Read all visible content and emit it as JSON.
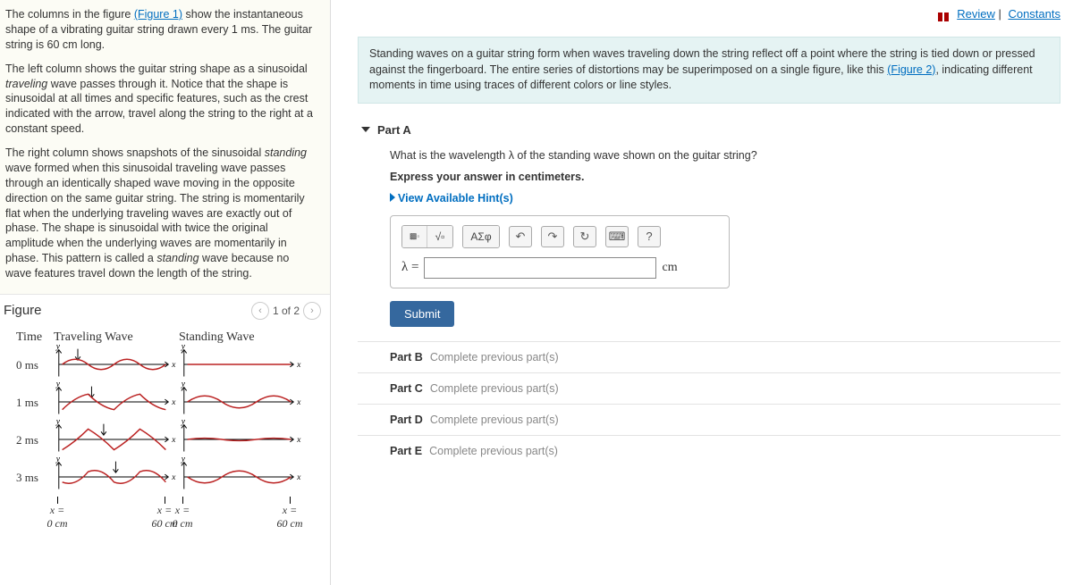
{
  "left": {
    "p1a": "The columns in the figure ",
    "p1_link": "(Figure 1)",
    "p1b": " show the instantaneous shape of a vibrating guitar string drawn every 1 ms. The guitar string is 60 cm long.",
    "p2a": "The left column shows the guitar string shape as a sinusoidal ",
    "p2_i": "traveling",
    "p2b": " wave passes through it. Notice that the shape is sinusoidal at all times and specific features, such as the crest indicated with the arrow, travel along the string to the right at a constant speed.",
    "p3a": "The right column shows snapshots of the sinusoidal ",
    "p3_i1": "standing",
    "p3b": " wave formed when this sinusoidal traveling wave passes through an identically shaped wave moving in the opposite direction on the same guitar string. The string is momentarily flat when the underlying traveling waves are exactly out of phase. The shape is sinusoidal with twice the original amplitude when the underlying waves are momentarily in phase. This pattern is called a ",
    "p3_i2": "standing",
    "p3c": " wave because no wave features travel down the length of the string."
  },
  "figure": {
    "title": "Figure",
    "pager": "1 of 2",
    "headers": {
      "time": "Time",
      "trav": "Traveling Wave",
      "stand": "Standing Wave"
    },
    "rows": [
      "0 ms",
      "1 ms",
      "2 ms",
      "3 ms"
    ],
    "xlabels": {
      "left0": "x =\n0 cm",
      "left60": "x =\n60 cm",
      "right0": "x =\n0 cm",
      "right60": "x =\n60 cm"
    },
    "wave_color": "#bb2222",
    "axis_color": "#000000",
    "trav_paths": [
      "M0,0 Q15,-12 30,0 Q45,12 60,0 Q75,-12 90,0 Q105,12 120,0",
      "M0,9 Q15,-6 30,-9 Q45,6 60,9 Q75,-6 90,-9 Q105,6 120,9",
      "M0,12 Q15,3 30,-12 Q45,-3 60,12 Q75,3 90,-12 Q105,-3 120,12",
      "M0,6 Q15,12 30,-6 Q45,-12 60,6 Q75,12 90,-6 Q105,-12 120,6"
    ],
    "stand_paths": [
      "M0,0 L120,0",
      "M0,0 Q20,-14 40,0 Q60,14 80,0 Q100,-14 120,0",
      "M0,0 Q20,-3 40,0 Q60,3 80,0 Q100,-3 120,0",
      "M0,0 Q20,14 40,0 Q60,-14 80,0 Q100,14 120,0"
    ]
  },
  "top": {
    "review": "Review",
    "constants": "Constants"
  },
  "info": {
    "a": "Standing waves on a guitar string form when waves traveling down the string reflect off a point where the string is tied down or pressed against the fingerboard. The entire series of distortions may be superimposed on a single figure, like this ",
    "link": "(Figure 2)",
    "b": ", indicating different moments in time using traces of different colors or line styles."
  },
  "partA": {
    "title": "Part A",
    "question": "What is the wavelength λ of the standing wave shown on the guitar string?",
    "instruction": "Express your answer in centimeters.",
    "hints": "View Available Hint(s)",
    "toolbar": {
      "sqrt": "√▫",
      "greek": "ΑΣφ",
      "undo": "↶",
      "redo": "↷",
      "reset": "↻",
      "kbd": "⌨",
      "help": "?"
    },
    "lambda": "λ =",
    "unit": "cm",
    "submit": "Submit"
  },
  "locked": [
    {
      "t": "Part B",
      "m": "Complete previous part(s)"
    },
    {
      "t": "Part C",
      "m": "Complete previous part(s)"
    },
    {
      "t": "Part D",
      "m": "Complete previous part(s)"
    },
    {
      "t": "Part E",
      "m": "Complete previous part(s)"
    }
  ]
}
